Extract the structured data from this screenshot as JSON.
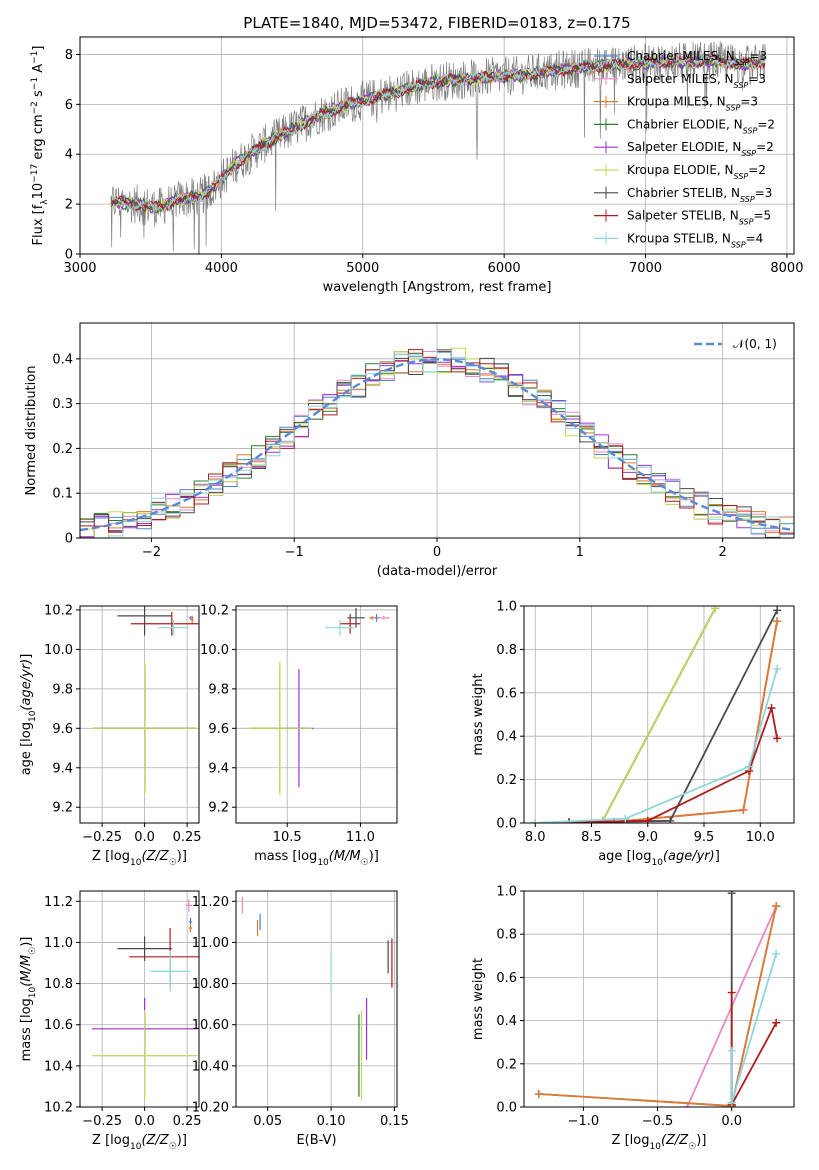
{
  "figure": {
    "title": "PLATE=1840, MJD=53472, FIBERID=0183, z=0.175"
  },
  "models": [
    {
      "name": "Chabrier MILES",
      "nssp": "3",
      "color": "#4c82c9"
    },
    {
      "name": "Salpeter MILES",
      "nssp": "3",
      "color": "#e58ac5"
    },
    {
      "name": "Kroupa MILES",
      "nssp": "3",
      "color": "#e07a2c"
    },
    {
      "name": "Chabrier ELODIE",
      "nssp": "2",
      "color": "#2e7d32"
    },
    {
      "name": "Salpeter ELODIE",
      "nssp": "2",
      "color": "#9b30d9"
    },
    {
      "name": "Kroupa ELODIE",
      "nssp": "2",
      "color": "#c8d85a"
    },
    {
      "name": "Chabrier STELIB",
      "nssp": "3",
      "color": "#4a4a4a"
    },
    {
      "name": "Salpeter STELIB",
      "nssp": "5",
      "color": "#b01c1c"
    },
    {
      "name": "Kroupa STELIB",
      "nssp": "4",
      "color": "#8ed6dc"
    }
  ],
  "chart_data": [
    {
      "id": "spectrum",
      "type": "line",
      "title": "PLATE=1840, MJD=53472, FIBERID=0183, z=0.175",
      "xlabel": "wavelength [Angstrom, rest frame]",
      "ylabel": "Flux [f_λ 10^-17 erg cm^-2 s^-1 A^-1]",
      "xlim": [
        3000,
        8050
      ],
      "ylim": [
        0,
        8.7
      ],
      "xticks": [
        3000,
        4000,
        5000,
        6000,
        7000,
        8000
      ],
      "yticks": [
        0,
        2,
        4,
        6,
        8
      ],
      "data_color": "#808080",
      "continuum": {
        "x": [
          3220,
          3400,
          3550,
          3700,
          3850,
          3950,
          4100,
          4300,
          4500,
          4700,
          4900,
          5100,
          5300,
          5500,
          5700,
          5900,
          6100,
          6300,
          6500,
          6700,
          6900,
          7100,
          7300,
          7500,
          7700,
          7850
        ],
        "y": [
          2.1,
          2.0,
          1.85,
          2.2,
          2.3,
          2.7,
          3.6,
          4.4,
          5.0,
          5.6,
          6.0,
          6.3,
          6.6,
          6.9,
          7.0,
          7.1,
          7.15,
          7.3,
          7.45,
          7.55,
          7.6,
          7.7,
          7.7,
          7.75,
          7.6,
          7.7
        ]
      }
    },
    {
      "id": "residual-histogram",
      "type": "line",
      "xlabel": "(data-model)/error",
      "ylabel": "Normed distribution",
      "xlim": [
        -2.5,
        2.5
      ],
      "ylim": [
        0,
        0.48
      ],
      "xticks": [
        -2,
        -1,
        0,
        1,
        2
      ],
      "yticks": [
        0.0,
        0.1,
        0.2,
        0.3,
        0.4
      ],
      "reference": {
        "label": "𝒩(0, 1)",
        "color": "#5a8ad6"
      }
    },
    {
      "id": "age-vs-metallicity",
      "type": "scatter",
      "xlabel": "Z [log10(Z/Z☉)]",
      "ylabel": "age [log10(age/yr)]",
      "xlim": [
        -0.38,
        0.32
      ],
      "ylim": [
        9.12,
        10.22
      ],
      "xticks": [
        -0.25,
        0.0,
        0.25
      ],
      "yticks": [
        9.2,
        9.4,
        9.6,
        9.8,
        10.0,
        10.2
      ],
      "points": [
        {
          "model": 0,
          "x": 0.27,
          "y": 10.16,
          "xerr": 0.01,
          "yerr": 0.01
        },
        {
          "model": 1,
          "x": 0.28,
          "y": 10.16,
          "xerr": 0.01,
          "yerr": 0.01
        },
        {
          "model": 2,
          "x": 0.28,
          "y": 10.15,
          "xerr": 0.01,
          "yerr": 0.02
        },
        {
          "model": 3,
          "x": 0.0,
          "y": 9.6,
          "xerr": 0.3,
          "yerr": 0.33
        },
        {
          "model": 4,
          "x": 0.0,
          "y": 9.6,
          "xerr": 0.3,
          "yerr": 0.32
        },
        {
          "model": 5,
          "x": 0.0,
          "y": 9.6,
          "xerr": 0.31,
          "yerr": 0.34
        },
        {
          "model": 6,
          "x": 0.0,
          "y": 10.17,
          "xerr": 0.16,
          "yerr": 0.1
        },
        {
          "model": 7,
          "x": 0.16,
          "y": 10.13,
          "xerr": 0.24,
          "yerr": 0.06
        },
        {
          "model": 8,
          "x": 0.17,
          "y": 10.11,
          "xerr": 0.09,
          "yerr": 0.04
        }
      ]
    },
    {
      "id": "age-vs-mass",
      "type": "scatter",
      "xlabel": "mass [log10(M/M☉)]",
      "ylabel": "",
      "xlim": [
        10.15,
        11.25
      ],
      "ylim": [
        9.12,
        10.22
      ],
      "xticks": [
        10.5,
        11.0
      ],
      "yticks": [
        9.2,
        9.4,
        9.6,
        9.8,
        10.0,
        10.2
      ],
      "points": [
        {
          "model": 0,
          "x": 11.11,
          "y": 10.16,
          "xerr": 0.02,
          "yerr": 0.02
        },
        {
          "model": 1,
          "x": 11.16,
          "y": 10.16,
          "xerr": 0.04,
          "yerr": 0.01
        },
        {
          "model": 2,
          "x": 11.08,
          "y": 10.16,
          "xerr": 0.02,
          "yerr": 0.01
        },
        {
          "model": 3,
          "x": 10.45,
          "y": 9.6,
          "xerr": 0.2,
          "yerr": 0.32
        },
        {
          "model": 4,
          "x": 10.58,
          "y": 9.6,
          "xerr": 0.1,
          "yerr": 0.3
        },
        {
          "model": 5,
          "x": 10.45,
          "y": 9.6,
          "xerr": 0.22,
          "yerr": 0.34
        },
        {
          "model": 6,
          "x": 10.97,
          "y": 10.16,
          "xerr": 0.06,
          "yerr": 0.05
        },
        {
          "model": 7,
          "x": 10.93,
          "y": 10.13,
          "xerr": 0.07,
          "yerr": 0.05
        },
        {
          "model": 8,
          "x": 10.86,
          "y": 10.11,
          "xerr": 0.1,
          "yerr": 0.04
        }
      ]
    },
    {
      "id": "mass-weight-vs-age",
      "type": "line",
      "xlabel": "age [log10(age/yr)]",
      "ylabel": "mass weight",
      "xlim": [
        7.9,
        10.3
      ],
      "ylim": [
        0,
        1.0
      ],
      "xticks": [
        8.0,
        8.5,
        9.0,
        9.5,
        10.0
      ],
      "yticks": [
        0.0,
        0.2,
        0.4,
        0.6,
        0.8,
        1.0
      ],
      "series": [
        {
          "model": 0,
          "x": [
            8.0,
            8.3,
            8.7,
            9.85,
            10.15
          ],
          "y": [
            0.0,
            0.003,
            0.005,
            0.06,
            0.93
          ]
        },
        {
          "model": 1,
          "x": [
            8.0,
            8.3,
            8.7,
            9.85,
            10.15
          ],
          "y": [
            0.0,
            0.003,
            0.005,
            0.06,
            0.93
          ]
        },
        {
          "model": 2,
          "x": [
            8.0,
            8.3,
            8.7,
            9.85,
            10.15
          ],
          "y": [
            0.0,
            0.003,
            0.005,
            0.06,
            0.93
          ]
        },
        {
          "model": 3,
          "x": [
            8.6,
            9.6
          ],
          "y": [
            0.01,
            0.99
          ]
        },
        {
          "model": 4,
          "x": [
            8.6,
            9.6
          ],
          "y": [
            0.01,
            0.99
          ]
        },
        {
          "model": 5,
          "x": [
            8.6,
            9.6
          ],
          "y": [
            0.01,
            0.99
          ]
        },
        {
          "model": 6,
          "x": [
            8.3,
            9.2,
            10.15
          ],
          "y": [
            0.003,
            0.01,
            0.98
          ]
        },
        {
          "model": 7,
          "x": [
            8.3,
            9.0,
            9.9,
            10.1,
            10.15
          ],
          "y": [
            0.003,
            0.01,
            0.24,
            0.53,
            0.39
          ]
        },
        {
          "model": 8,
          "x": [
            8.0,
            8.8,
            9.9,
            10.15
          ],
          "y": [
            0.0,
            0.02,
            0.26,
            0.71
          ]
        }
      ]
    },
    {
      "id": "mass-vs-metallicity",
      "type": "scatter",
      "xlabel": "Z [log10(Z/Z☉)]",
      "ylabel": "mass [log10(M/M☉)]",
      "xlim": [
        -0.38,
        0.32
      ],
      "ylim": [
        10.2,
        11.25
      ],
      "xticks": [
        -0.25,
        0.0,
        0.25
      ],
      "yticks": [
        10.2,
        10.4,
        10.6,
        10.8,
        11.0,
        11.2
      ],
      "points": [
        {
          "model": 0,
          "x": 0.27,
          "y": 11.1,
          "xerr": 0.01,
          "yerr": 0.02
        },
        {
          "model": 1,
          "x": 0.26,
          "y": 11.18,
          "xerr": 0.02,
          "yerr": 0.03
        },
        {
          "model": 2,
          "x": 0.27,
          "y": 11.07,
          "xerr": 0.01,
          "yerr": 0.02
        },
        {
          "model": 3,
          "x": 0.0,
          "y": 10.45,
          "xerr": 0.3,
          "yerr": 0.2
        },
        {
          "model": 4,
          "x": 0.0,
          "y": 10.58,
          "xerr": 0.31,
          "yerr": 0.15
        },
        {
          "model": 5,
          "x": 0.0,
          "y": 10.45,
          "xerr": 0.31,
          "yerr": 0.22
        },
        {
          "model": 6,
          "x": 0.0,
          "y": 10.97,
          "xerr": 0.16,
          "yerr": 0.06
        },
        {
          "model": 7,
          "x": 0.15,
          "y": 10.93,
          "xerr": 0.24,
          "yerr": 0.14
        },
        {
          "model": 8,
          "x": 0.15,
          "y": 10.86,
          "xerr": 0.12,
          "yerr": 0.1
        }
      ]
    },
    {
      "id": "mass-vs-extinction",
      "type": "scatter",
      "xlabel": "E(B-V)",
      "ylabel": "",
      "xlim": [
        0.025,
        0.152
      ],
      "ylim": [
        10.2,
        11.25
      ],
      "xticks": [
        0.05,
        0.1,
        0.15
      ],
      "yticks": [
        10.2,
        10.4,
        10.6,
        10.8,
        11.0,
        11.2
      ],
      "points": [
        {
          "model": 0,
          "x": 0.044,
          "y": 11.1,
          "xerr": 0.0,
          "yerr": 0.04
        },
        {
          "model": 1,
          "x": 0.03,
          "y": 11.18,
          "xerr": 0.0,
          "yerr": 0.04
        },
        {
          "model": 2,
          "x": 0.042,
          "y": 11.07,
          "xerr": 0.0,
          "yerr": 0.04
        },
        {
          "model": 3,
          "x": 0.122,
          "y": 10.45,
          "xerr": 0.0,
          "yerr": 0.2
        },
        {
          "model": 4,
          "x": 0.128,
          "y": 10.58,
          "xerr": 0.0,
          "yerr": 0.15
        },
        {
          "model": 5,
          "x": 0.124,
          "y": 10.45,
          "xerr": 0.0,
          "yerr": 0.22
        },
        {
          "model": 6,
          "x": 0.145,
          "y": 10.93,
          "xerr": 0.0,
          "yerr": 0.08
        },
        {
          "model": 7,
          "x": 0.148,
          "y": 10.9,
          "xerr": 0.0,
          "yerr": 0.12
        },
        {
          "model": 8,
          "x": 0.1,
          "y": 10.86,
          "xerr": 0.0,
          "yerr": 0.1
        }
      ]
    },
    {
      "id": "mass-weight-vs-metallicity",
      "type": "line",
      "xlabel": "Z [log10(Z/Z☉)]",
      "ylabel": "mass weight",
      "xlim": [
        -1.4,
        0.42
      ],
      "ylim": [
        0,
        1.0
      ],
      "xticks": [
        -1.0,
        -0.5,
        0.0
      ],
      "yticks": [
        0.0,
        0.2,
        0.4,
        0.6,
        0.8,
        1.0
      ],
      "series": [
        {
          "model": 0,
          "x": [
            -1.3,
            0.0,
            0.3
          ],
          "y": [
            0.06,
            0.005,
            0.93
          ]
        },
        {
          "model": 1,
          "x": [
            -0.3,
            0.3
          ],
          "y": [
            0.0,
            0.93
          ]
        },
        {
          "model": 2,
          "x": [
            -1.3,
            0.0,
            0.3
          ],
          "y": [
            0.06,
            0.005,
            0.93
          ]
        },
        {
          "model": 3,
          "x": [
            0.0
          ],
          "y": [
            0.01
          ]
        },
        {
          "model": 4,
          "x": [
            0.0
          ],
          "y": [
            0.01
          ]
        },
        {
          "model": 5,
          "x": [
            0.0
          ],
          "y": [
            0.01
          ]
        },
        {
          "model": 6,
          "x": [
            0.0,
            0.0
          ],
          "y": [
            0.02,
            0.99
          ]
        },
        {
          "model": 7,
          "x": [
            0.0,
            0.0,
            0.3
          ],
          "y": [
            0.53,
            0.01,
            0.39
          ]
        },
        {
          "model": 8,
          "x": [
            0.0,
            0.0,
            0.3
          ],
          "y": [
            0.26,
            0.02,
            0.71
          ]
        }
      ]
    }
  ]
}
